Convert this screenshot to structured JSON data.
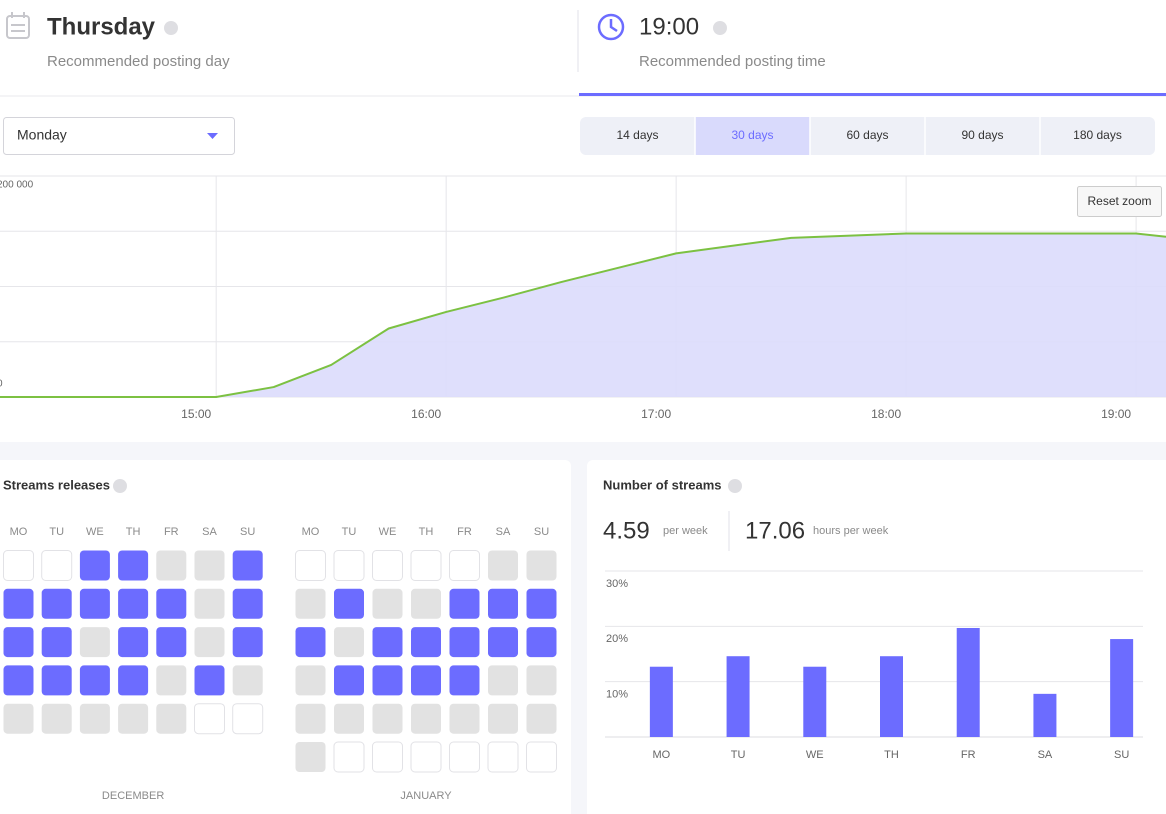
{
  "header": {
    "day": {
      "title": "Thursday",
      "caption": "Recommended posting day"
    },
    "time": {
      "title": "19:00",
      "caption": "Recommended posting time"
    }
  },
  "controls": {
    "day_select": "Monday",
    "ranges": [
      {
        "label": "14 days",
        "active": false
      },
      {
        "label": "30 days",
        "active": true
      },
      {
        "label": "60 days",
        "active": false
      },
      {
        "label": "90 days",
        "active": false
      },
      {
        "label": "180 days",
        "active": false
      }
    ],
    "reset_zoom": "Reset zoom"
  },
  "chart_data": [
    {
      "type": "area",
      "x": [
        14.06,
        15.0,
        15.25,
        15.5,
        15.75,
        16.0,
        16.25,
        16.5,
        17.0,
        17.5,
        18.0,
        18.5,
        19.0,
        19.13
      ],
      "values": [
        0,
        0,
        9000,
        29000,
        62000,
        77000,
        90000,
        104000,
        130000,
        144000,
        148000,
        148000,
        148000,
        145000
      ],
      "color": "#dcdcfc",
      "line_color": "#7cc142",
      "xlim": [
        14.06,
        19.13
      ],
      "ylim": [
        0,
        200000
      ],
      "xticks": [
        {
          "value": 15,
          "label": "15:00"
        },
        {
          "value": 16,
          "label": "16:00"
        },
        {
          "value": 17,
          "label": "17:00"
        },
        {
          "value": 18,
          "label": "18:00"
        },
        {
          "value": 19,
          "label": "19:00"
        }
      ],
      "yticks": [
        0,
        {
          "value": 200000,
          "label": "200 000"
        }
      ],
      "minor_grid": [
        50000,
        100000,
        150000
      ],
      "grid": true
    },
    {
      "type": "bar",
      "title": "Number of streams",
      "categories": [
        "MO",
        "TU",
        "WE",
        "TH",
        "FR",
        "SA",
        "SU"
      ],
      "values": [
        12.7,
        14.6,
        12.7,
        14.6,
        19.7,
        7.8,
        17.7
      ],
      "color": "#6c6cff",
      "ylim": [
        0,
        30
      ],
      "yticks": [
        {
          "value": 10,
          "label": "10%"
        },
        {
          "value": 20,
          "label": "20%"
        },
        {
          "value": 30,
          "label": "30%"
        }
      ],
      "grid": true
    }
  ],
  "stats": [
    {
      "value": 4.59,
      "unit": "per week"
    },
    {
      "value": 17.06,
      "unit": "hours per week"
    }
  ],
  "calendar": {
    "title": "Streams releases",
    "weekdays": [
      "MO",
      "TU",
      "WE",
      "TH",
      "FR",
      "SA",
      "SU"
    ],
    "colors": [
      "#ffffff",
      "#e2e2e2",
      "#6c6cff"
    ],
    "months": [
      {
        "name": "DECEMBER",
        "weeks": [
          [
            0,
            0,
            2,
            2,
            1,
            1,
            2
          ],
          [
            2,
            2,
            2,
            2,
            2,
            1,
            2
          ],
          [
            2,
            2,
            1,
            2,
            2,
            1,
            2
          ],
          [
            2,
            2,
            2,
            2,
            1,
            2,
            1
          ],
          [
            1,
            1,
            1,
            1,
            1,
            0,
            0
          ]
        ]
      },
      {
        "name": "JANUARY",
        "weeks": [
          [
            0,
            0,
            0,
            0,
            0,
            1,
            1
          ],
          [
            1,
            2,
            1,
            1,
            2,
            2,
            2
          ],
          [
            2,
            1,
            2,
            2,
            2,
            2,
            2
          ],
          [
            1,
            2,
            2,
            2,
            2,
            1,
            1
          ],
          [
            1,
            1,
            1,
            1,
            1,
            1,
            1
          ],
          [
            1,
            0,
            0,
            0,
            0,
            0,
            0
          ]
        ]
      }
    ]
  }
}
